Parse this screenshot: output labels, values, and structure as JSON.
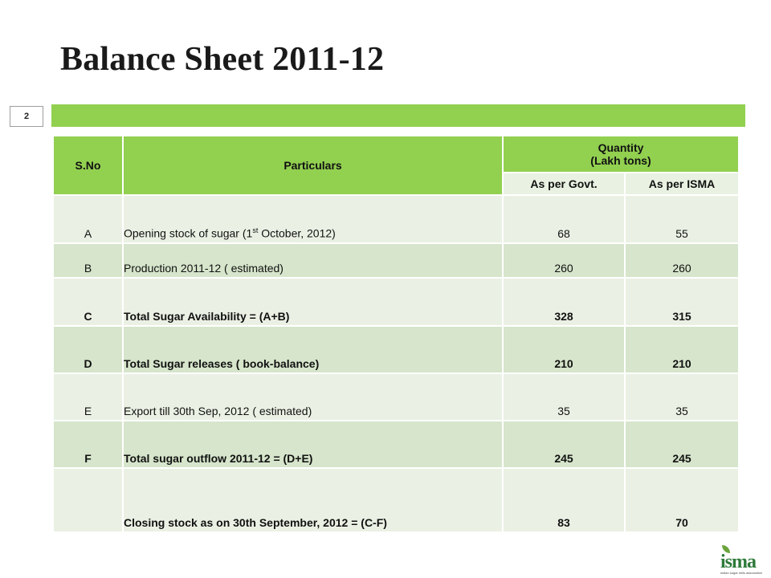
{
  "title": "Balance Sheet 2011-12",
  "page_number": "2",
  "table": {
    "headers": {
      "sno": "S.No",
      "particulars": "Particulars",
      "quantity_line1": "Quantity",
      "quantity_line2": "(Lakh tons)",
      "govt": "As per Govt.",
      "isma": "As per ISMA"
    },
    "rows": [
      {
        "sno": "A",
        "particulars": "Opening stock of sugar (1",
        "sup": "st",
        "particulars_tail": " October, 2012)",
        "govt": "68",
        "isma": "55"
      },
      {
        "sno": "B",
        "particulars": "Production 2011-12 ( estimated)",
        "govt": "260",
        "isma": "260"
      },
      {
        "sno": "C",
        "particulars": "Total Sugar Availability = (A+B)",
        "govt": "328",
        "isma": "315"
      },
      {
        "sno": "D",
        "particulars": "Total Sugar releases ( book-balance)",
        "govt": "210",
        "isma": "210"
      },
      {
        "sno": "E",
        "particulars": "Export till 30th Sep, 2012 ( estimated)",
        "govt": "35",
        "isma": "35"
      },
      {
        "sno": "F",
        "particulars": "Total sugar outflow 2011-12 = (D+E)",
        "govt": "245",
        "isma": "245"
      },
      {
        "sno": "",
        "particulars": "Closing stock as on 30th September, 2012 = (C-F)",
        "govt": "83",
        "isma": "70"
      }
    ]
  },
  "logo": {
    "wordmark": "isma",
    "tagline": "indian sugar mills association"
  },
  "colors": {
    "accent_green": "#92d050",
    "row_light": "#eaf1e4",
    "row_dark": "#d6e5cb",
    "logo_green": "#2f7a3a"
  }
}
